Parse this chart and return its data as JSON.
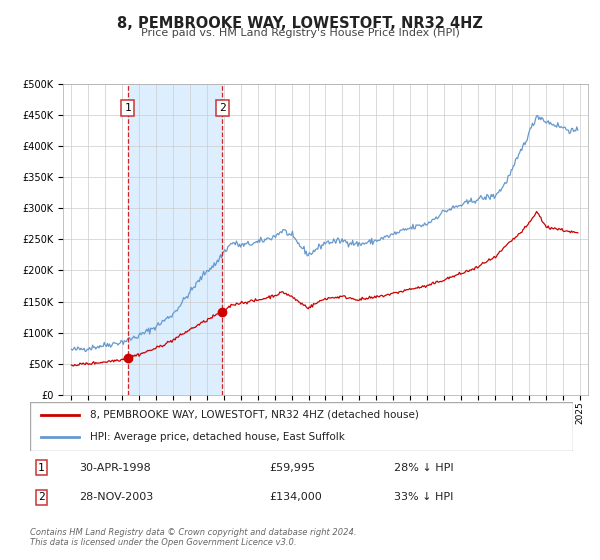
{
  "title": "8, PEMBROOKE WAY, LOWESTOFT, NR32 4HZ",
  "subtitle": "Price paid vs. HM Land Registry's House Price Index (HPI)",
  "legend_label_red": "8, PEMBROOKE WAY, LOWESTOFT, NR32 4HZ (detached house)",
  "legend_label_blue": "HPI: Average price, detached house, East Suffolk",
  "transaction1_date": "30-APR-1998",
  "transaction1_price": "£59,995",
  "transaction1_hpi": "28% ↓ HPI",
  "transaction2_date": "28-NOV-2003",
  "transaction2_price": "£134,000",
  "transaction2_hpi": "33% ↓ HPI",
  "footer": "Contains HM Land Registry data © Crown copyright and database right 2024.\nThis data is licensed under the Open Government Licence v3.0.",
  "red_color": "#cc0000",
  "blue_color": "#6699cc",
  "shade_color": "#ddeeff",
  "grid_color": "#cccccc",
  "marker1_date_decimal": 1998.33,
  "marker1_value": 59995,
  "marker2_date_decimal": 2003.9,
  "marker2_value": 134000,
  "vline1_date_decimal": 1998.33,
  "vline2_date_decimal": 2003.9,
  "ylim_max": 500000,
  "xlim_min": 1994.5,
  "xlim_max": 2025.5,
  "background_color": "#ffffff",
  "hpi_anchors_t": [
    1995.0,
    1996.0,
    1997.0,
    1998.0,
    1999.0,
    2000.0,
    2001.0,
    2002.0,
    2003.0,
    2003.5,
    2004.0,
    2004.5,
    2005.0,
    2006.0,
    2007.0,
    2007.5,
    2008.0,
    2008.5,
    2009.0,
    2009.5,
    2010.0,
    2011.0,
    2012.0,
    2013.0,
    2014.0,
    2015.0,
    2016.0,
    2017.0,
    2018.0,
    2019.0,
    2020.0,
    2020.5,
    2021.0,
    2021.5,
    2022.0,
    2022.5,
    2023.0,
    2023.5,
    2024.0,
    2024.5,
    2024.9
  ],
  "hpi_anchors_v": [
    72000,
    75000,
    80000,
    85000,
    95000,
    110000,
    130000,
    165000,
    200000,
    210000,
    230000,
    245000,
    240000,
    245000,
    255000,
    265000,
    255000,
    240000,
    225000,
    235000,
    245000,
    248000,
    242000,
    248000,
    258000,
    268000,
    275000,
    295000,
    305000,
    315000,
    320000,
    335000,
    360000,
    390000,
    420000,
    450000,
    440000,
    435000,
    430000,
    425000,
    423000
  ],
  "red_anchors_t": [
    1995.0,
    1996.0,
    1997.0,
    1998.0,
    1998.33,
    1999.0,
    2000.0,
    2001.0,
    2002.0,
    2003.0,
    2003.9,
    2004.5,
    2005.0,
    2006.0,
    2007.0,
    2007.5,
    2008.0,
    2008.5,
    2009.0,
    2009.5,
    2010.0,
    2011.0,
    2012.0,
    2013.0,
    2014.0,
    2015.0,
    2016.0,
    2017.0,
    2018.0,
    2019.0,
    2019.5,
    2020.0,
    2020.5,
    2021.0,
    2021.5,
    2022.0,
    2022.5,
    2023.0,
    2023.5,
    2024.0,
    2024.5,
    2024.9
  ],
  "red_anchors_v": [
    48000,
    50000,
    53000,
    57000,
    59995,
    65000,
    75000,
    88000,
    105000,
    120000,
    134000,
    145000,
    148000,
    152000,
    160000,
    165000,
    158000,
    148000,
    140000,
    148000,
    155000,
    158000,
    153000,
    157000,
    163000,
    170000,
    175000,
    185000,
    195000,
    205000,
    215000,
    220000,
    235000,
    248000,
    260000,
    275000,
    295000,
    270000,
    268000,
    265000,
    262000,
    260000
  ]
}
